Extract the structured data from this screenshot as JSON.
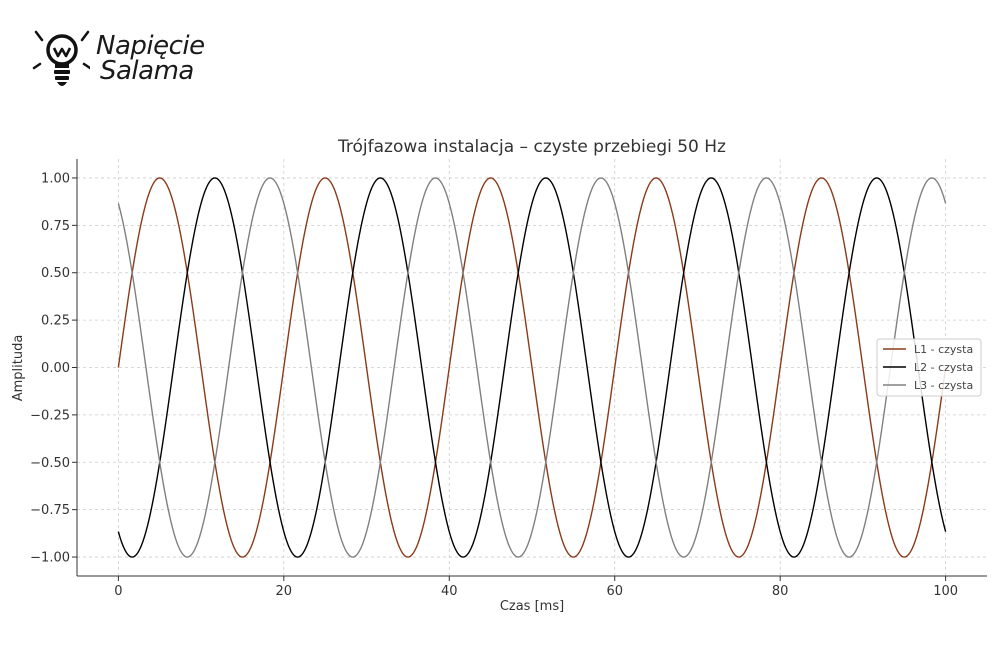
{
  "logo": {
    "line1": "Napięcie",
    "line2": "Salama",
    "icon": "lightbulb-w-icon"
  },
  "chart_data": {
    "type": "line",
    "title": "Trójfazowa instalacja – czyste przebiegi 50 Hz",
    "xlabel": "Czas [ms]",
    "ylabel": "Amplituda",
    "xlim": [
      -5,
      105
    ],
    "ylim": [
      -1.1,
      1.1
    ],
    "xticks": [
      0,
      20,
      40,
      60,
      80,
      100
    ],
    "yticks": [
      -1.0,
      -0.75,
      -0.5,
      -0.25,
      0.0,
      0.25,
      0.5,
      0.75,
      1.0
    ],
    "grid": true,
    "legend_position": "right",
    "frequency_hz": 50,
    "x_range_ms": [
      0,
      100
    ],
    "series": [
      {
        "name": "L1 - czysta",
        "color": "#8b3a1a",
        "phase_deg": 0
      },
      {
        "name": "L2 - czysta",
        "color": "#000000",
        "phase_deg": -120
      },
      {
        "name": "L3 - czysta",
        "color": "#808080",
        "phase_deg": 120
      }
    ]
  }
}
